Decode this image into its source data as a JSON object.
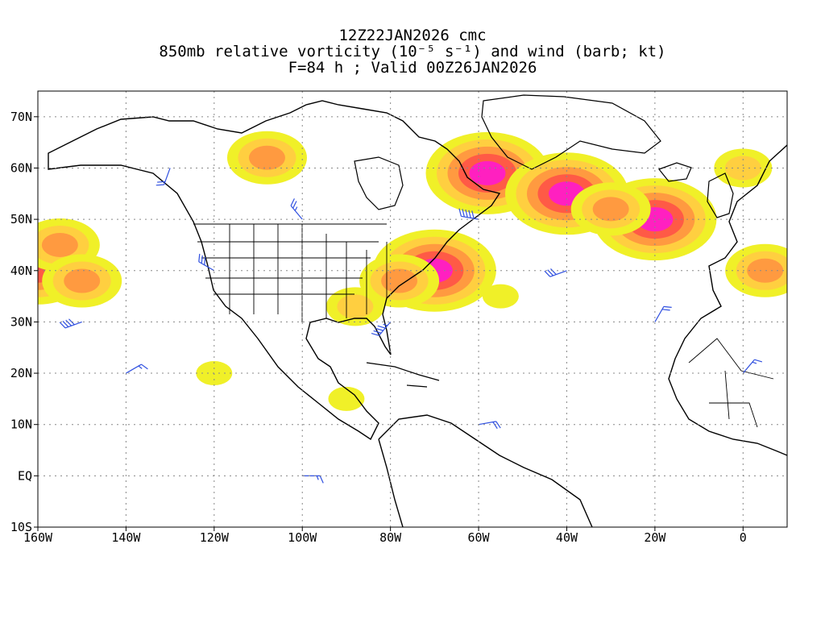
{
  "titles": {
    "line1": "12Z22JAN2026 cmc",
    "line2": "850mb relative vorticity (10⁻⁵ s⁻¹) and wind (barb; kt)",
    "line3": "F=84 h ; Valid 00Z26JAN2026"
  },
  "axes": {
    "lon_range": [
      -160,
      10
    ],
    "lat_range": [
      -10,
      75
    ],
    "lon_ticks": [
      {
        "value": -160,
        "label": "160W"
      },
      {
        "value": -140,
        "label": "140W"
      },
      {
        "value": -120,
        "label": "120W"
      },
      {
        "value": -100,
        "label": "100W"
      },
      {
        "value": -80,
        "label": "80W"
      },
      {
        "value": -60,
        "label": "60W"
      },
      {
        "value": -40,
        "label": "40W"
      },
      {
        "value": -20,
        "label": "20W"
      },
      {
        "value": 0,
        "label": "0"
      }
    ],
    "lat_ticks": [
      {
        "value": 70,
        "label": "70N"
      },
      {
        "value": 60,
        "label": "60N"
      },
      {
        "value": 50,
        "label": "50N"
      },
      {
        "value": 40,
        "label": "40N"
      },
      {
        "value": 30,
        "label": "30N"
      },
      {
        "value": 20,
        "label": "20N"
      },
      {
        "value": 10,
        "label": "10N"
      },
      {
        "value": 0,
        "label": "EQ"
      },
      {
        "value": -10,
        "label": "10S"
      }
    ]
  },
  "colors": {
    "level1": "#f0f028",
    "level2": "#ffcf40",
    "level3": "#ff9a40",
    "level4": "#ff5a46",
    "level5": "#ff20c0",
    "barb": "#3050e0",
    "coast": "#000000",
    "grid": "#888888"
  },
  "vorticity_features": [
    {
      "lon": -160,
      "lat": 40,
      "level": 4
    },
    {
      "lon": -155,
      "lat": 45,
      "level": 3
    },
    {
      "lon": -150,
      "lat": 38,
      "level": 3
    },
    {
      "lon": -108,
      "lat": 62,
      "level": 3
    },
    {
      "lon": -70,
      "lat": 40,
      "level": 5
    },
    {
      "lon": -78,
      "lat": 38,
      "level": 3
    },
    {
      "lon": -88,
      "lat": 33,
      "level": 2
    },
    {
      "lon": -58,
      "lat": 59,
      "level": 5
    },
    {
      "lon": -40,
      "lat": 55,
      "level": 5
    },
    {
      "lon": -20,
      "lat": 50,
      "level": 5
    },
    {
      "lon": -30,
      "lat": 52,
      "level": 3
    },
    {
      "lon": 5,
      "lat": 40,
      "level": 3
    },
    {
      "lon": 0,
      "lat": 60,
      "level": 2
    },
    {
      "lon": -120,
      "lat": 20,
      "level": 1
    },
    {
      "lon": -55,
      "lat": 35,
      "level": 1
    },
    {
      "lon": -90,
      "lat": 15,
      "level": 1
    }
  ],
  "wind_barbs": [
    {
      "lon": -150,
      "lat": 30,
      "dir": 250,
      "kt": 40
    },
    {
      "lon": -140,
      "lat": 20,
      "dir": 60,
      "kt": 15
    },
    {
      "lon": -120,
      "lat": 40,
      "dir": 300,
      "kt": 30
    },
    {
      "lon": -100,
      "lat": 50,
      "dir": 320,
      "kt": 25
    },
    {
      "lon": -80,
      "lat": 30,
      "dir": 220,
      "kt": 45
    },
    {
      "lon": -60,
      "lat": 50,
      "dir": 280,
      "kt": 50
    },
    {
      "lon": -40,
      "lat": 40,
      "dir": 250,
      "kt": 30
    },
    {
      "lon": -20,
      "lat": 30,
      "dir": 30,
      "kt": 20
    },
    {
      "lon": -60,
      "lat": 10,
      "dir": 80,
      "kt": 20
    },
    {
      "lon": -100,
      "lat": 0,
      "dir": 90,
      "kt": 15
    },
    {
      "lon": -130,
      "lat": 60,
      "dir": 200,
      "kt": 20
    },
    {
      "lon": 0,
      "lat": 20,
      "dir": 40,
      "kt": 15
    }
  ]
}
